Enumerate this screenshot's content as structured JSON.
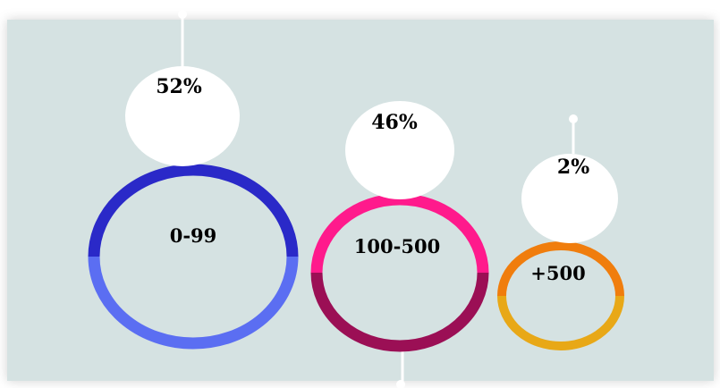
{
  "chart_data": {
    "type": "bubble",
    "title": "",
    "categories": [
      "0-99",
      "100-500",
      "+500"
    ],
    "values": [
      52,
      46,
      2
    ],
    "value_labels": [
      "52%",
      "46%",
      "2%"
    ],
    "unit": "%",
    "colors": [
      {
        "top": "#2a29c8",
        "bottom": "#5b6ef2"
      },
      {
        "top": "#ff1a8c",
        "bottom": "#9b0f55"
      },
      {
        "top": "#f07d0d",
        "bottom": "#e8a817"
      }
    ]
  },
  "theme": {
    "panel_color": "#d5e2e2",
    "bubble_fill": "#ffffff",
    "connector_color": "#ffffff"
  }
}
